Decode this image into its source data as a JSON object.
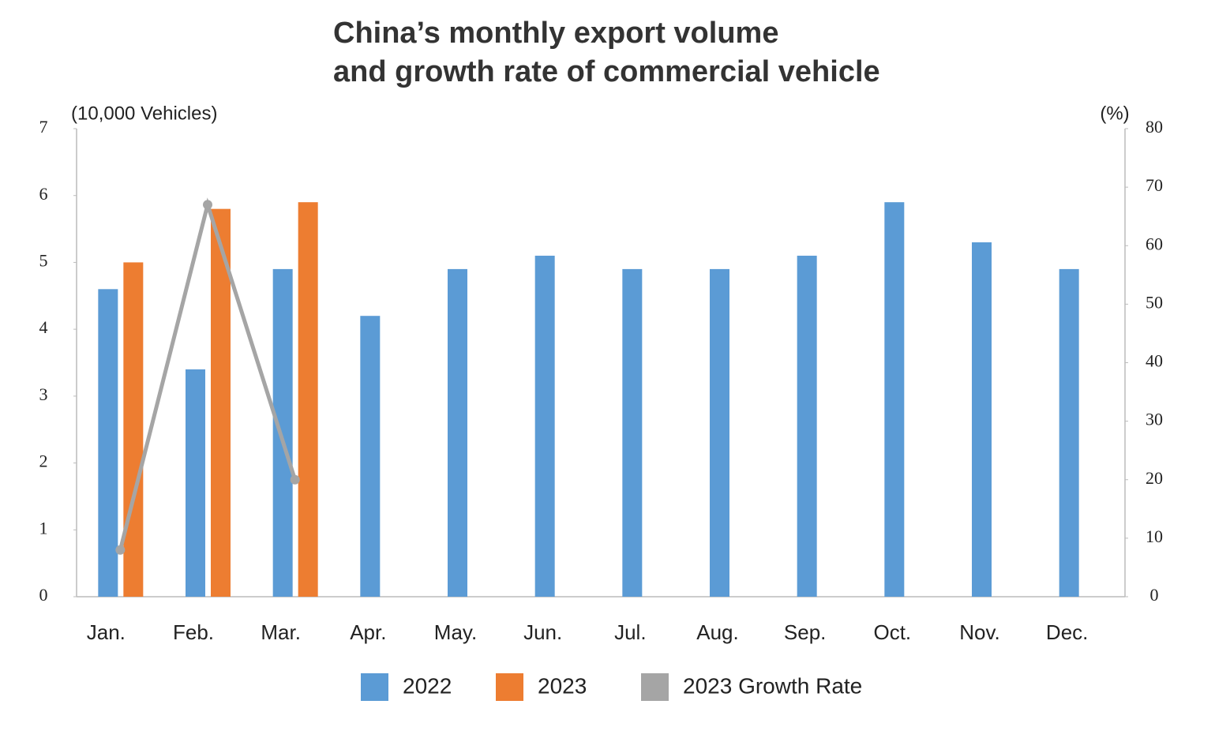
{
  "chart_data": {
    "type": "bar",
    "title": [
      "China’s monthly export volume",
      "and growth rate of commercial vehicle"
    ],
    "y_label": "(10,000 Vehicles)",
    "y2_label": "(%)",
    "categories": [
      "Jan.",
      "Feb.",
      "Mar.",
      "Apr.",
      "May.",
      "Jun.",
      "Jul.",
      "Aug.",
      "Sep.",
      "Oct.",
      "Nov.",
      "Dec."
    ],
    "series": [
      {
        "name": "2022",
        "color": "#5b9bd5",
        "values": [
          4.6,
          3.4,
          4.9,
          4.2,
          4.9,
          5.1,
          4.9,
          4.9,
          5.1,
          5.9,
          5.3,
          4.9
        ]
      },
      {
        "name": "2023",
        "color": "#ed7d31",
        "values": [
          5.0,
          5.8,
          5.9,
          null,
          null,
          null,
          null,
          null,
          null,
          null,
          null,
          null
        ]
      },
      {
        "name": "2023 Growth Rate",
        "type": "line",
        "axis": "y2",
        "color": "#a5a5a5",
        "values": [
          8,
          67,
          20,
          null,
          null,
          null,
          null,
          null,
          null,
          null,
          null,
          null
        ]
      }
    ],
    "ylim": [
      0,
      7
    ],
    "yticks": [
      0,
      1,
      2,
      3,
      4,
      5,
      6,
      7
    ],
    "y2lim": [
      0,
      80
    ],
    "y2ticks": [
      0,
      10,
      20,
      30,
      40,
      50,
      60,
      70,
      80
    ],
    "grid": false
  }
}
